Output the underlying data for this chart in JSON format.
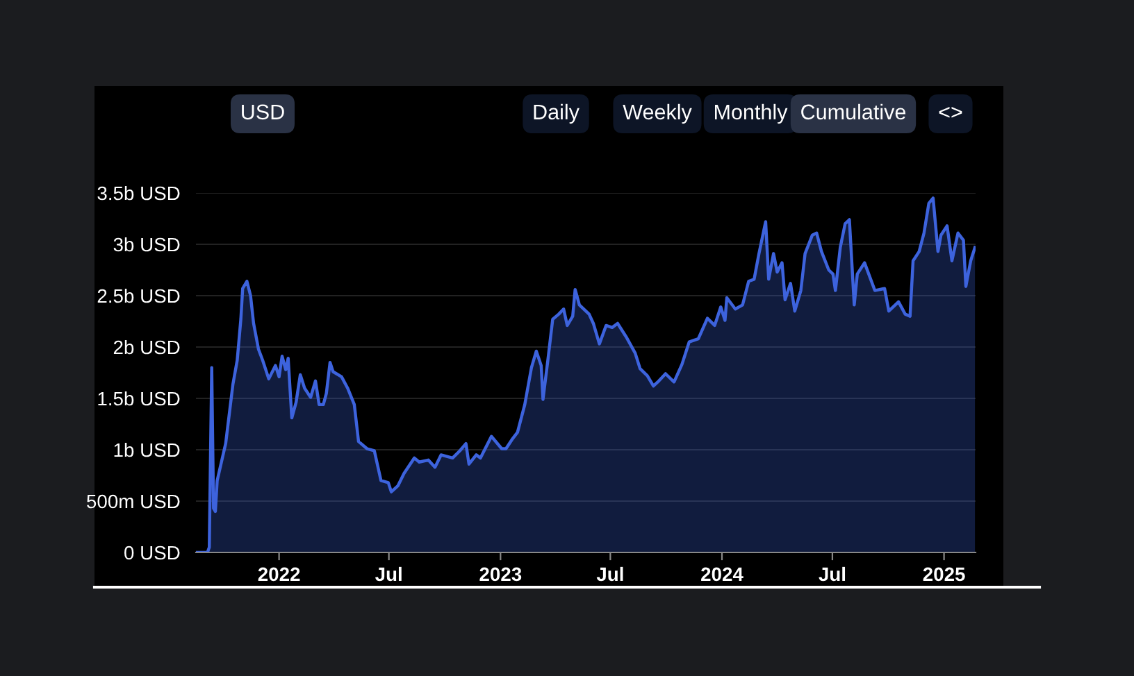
{
  "chart_data": {
    "type": "area",
    "x": [
      "2021-08-17",
      "2021-09-05",
      "2021-09-08",
      "2021-09-12",
      "2021-09-15",
      "2021-09-18",
      "2021-09-21",
      "2021-09-28",
      "2021-10-05",
      "2021-10-17",
      "2021-10-24",
      "2021-10-30",
      "2021-11-02",
      "2021-11-09",
      "2021-11-15",
      "2021-11-20",
      "2021-11-28",
      "2021-12-05",
      "2021-12-15",
      "2021-12-26",
      "2022-01-01",
      "2022-01-06",
      "2022-01-12",
      "2022-01-16",
      "2022-01-22",
      "2022-01-29",
      "2022-02-05",
      "2022-02-12",
      "2022-02-22",
      "2022-03-02",
      "2022-03-08",
      "2022-03-15",
      "2022-03-20",
      "2022-03-26",
      "2022-03-31",
      "2022-04-14",
      "2022-04-24",
      "2022-05-05",
      "2022-05-12",
      "2022-05-26",
      "2022-06-07",
      "2022-06-18",
      "2022-06-30",
      "2022-07-05",
      "2022-07-16",
      "2022-07-26",
      "2022-08-12",
      "2022-08-20",
      "2022-09-04",
      "2022-09-15",
      "2022-09-25",
      "2022-10-14",
      "2022-10-26",
      "2022-11-05",
      "2022-11-10",
      "2022-11-22",
      "2022-11-29",
      "2022-12-17",
      "2023-01-03",
      "2023-01-10",
      "2023-01-20",
      "2023-01-29",
      "2023-02-10",
      "2023-02-21",
      "2023-03-01",
      "2023-03-09",
      "2023-03-12",
      "2023-03-20",
      "2023-03-28",
      "2023-04-07",
      "2023-04-15",
      "2023-04-21",
      "2023-04-30",
      "2023-05-04",
      "2023-05-11",
      "2023-05-27",
      "2023-06-03",
      "2023-06-13",
      "2023-06-24",
      "2023-07-04",
      "2023-07-13",
      "2023-07-27",
      "2023-08-11",
      "2023-08-19",
      "2023-08-31",
      "2023-09-10",
      "2023-09-19",
      "2023-09-30",
      "2023-10-14",
      "2023-10-27",
      "2023-11-08",
      "2023-11-23",
      "2023-12-08",
      "2023-12-20",
      "2023-12-30",
      "2024-01-06",
      "2024-01-09",
      "2024-01-23",
      "2024-02-04",
      "2024-02-14",
      "2024-02-23",
      "2024-03-02",
      "2024-03-13",
      "2024-03-18",
      "2024-03-26",
      "2024-04-01",
      "2024-04-09",
      "2024-04-14",
      "2024-04-23",
      "2024-04-30",
      "2024-05-10",
      "2024-05-17",
      "2024-05-29",
      "2024-06-05",
      "2024-06-13",
      "2024-06-25",
      "2024-07-02",
      "2024-07-06",
      "2024-07-14",
      "2024-07-22",
      "2024-07-29",
      "2024-08-06",
      "2024-08-11",
      "2024-08-23",
      "2024-09-09",
      "2024-09-25",
      "2024-10-02",
      "2024-10-18",
      "2024-10-29",
      "2024-11-06",
      "2024-11-11",
      "2024-11-21",
      "2024-11-29",
      "2024-12-07",
      "2024-12-14",
      "2024-12-22",
      "2024-12-27",
      "2025-01-06",
      "2025-01-14",
      "2025-01-24",
      "2025-02-02",
      "2025-02-06",
      "2025-02-14",
      "2025-02-21"
    ],
    "series": [
      {
        "color": "#3d63dd",
        "values": [
          0,
          0,
          50000000.0,
          1800000000.0,
          430000000.0,
          400000000.0,
          700000000.0,
          880000000.0,
          1060000000.0,
          1640000000.0,
          1870000000.0,
          2270000000.0,
          2570000000.0,
          2640000000.0,
          2500000000.0,
          2230000000.0,
          1980000000.0,
          1870000000.0,
          1690000000.0,
          1820000000.0,
          1710000000.0,
          1910000000.0,
          1780000000.0,
          1890000000.0,
          1310000000.0,
          1460000000.0,
          1730000000.0,
          1600000000.0,
          1510000000.0,
          1670000000.0,
          1440000000.0,
          1440000000.0,
          1550000000.0,
          1850000000.0,
          1760000000.0,
          1710000000.0,
          1600000000.0,
          1440000000.0,
          1080000000.0,
          1010000000.0,
          990000000.0,
          700000000.0,
          680000000.0,
          590000000.0,
          650000000.0,
          770000000.0,
          920000000.0,
          880000000.0,
          900000000.0,
          830000000.0,
          950000000.0,
          920000000.0,
          990000000.0,
          1060000000.0,
          860000000.0,
          950000000.0,
          920000000.0,
          1130000000.0,
          1010000000.0,
          1010000000.0,
          1100000000.0,
          1170000000.0,
          1440000000.0,
          1800000000.0,
          1960000000.0,
          1820000000.0,
          1490000000.0,
          1870000000.0,
          2270000000.0,
          2320000000.0,
          2370000000.0,
          2210000000.0,
          2300000000.0,
          2560000000.0,
          2410000000.0,
          2320000000.0,
          2230000000.0,
          2030000000.0,
          2210000000.0,
          2190000000.0,
          2230000000.0,
          2100000000.0,
          1940000000.0,
          1790000000.0,
          1720000000.0,
          1620000000.0,
          1670000000.0,
          1740000000.0,
          1660000000.0,
          1830000000.0,
          2050000000.0,
          2080000000.0,
          2280000000.0,
          2210000000.0,
          2390000000.0,
          2260000000.0,
          2480000000.0,
          2370000000.0,
          2410000000.0,
          2640000000.0,
          2660000000.0,
          2910000000.0,
          3220000000.0,
          2660000000.0,
          2910000000.0,
          2730000000.0,
          2820000000.0,
          2460000000.0,
          2620000000.0,
          2350000000.0,
          2550000000.0,
          2910000000.0,
          3090000000.0,
          3110000000.0,
          2930000000.0,
          2750000000.0,
          2710000000.0,
          2550000000.0,
          2970000000.0,
          3200000000.0,
          3240000000.0,
          2410000000.0,
          2710000000.0,
          2820000000.0,
          2550000000.0,
          2570000000.0,
          2350000000.0,
          2440000000.0,
          2320000000.0,
          2300000000.0,
          2840000000.0,
          2930000000.0,
          3110000000.0,
          3400000000.0,
          3450000000.0,
          2930000000.0,
          3090000000.0,
          3180000000.0,
          2840000000.0,
          3110000000.0,
          3040000000.0,
          2590000000.0,
          2840000000.0,
          2970000000.0
        ]
      }
    ],
    "xlim": [
      "2021-08-17",
      "2025-02-22"
    ],
    "xticks": [
      {
        "value": "2022-01-01",
        "label": "2022"
      },
      {
        "value": "2022-07-01",
        "label": "Jul"
      },
      {
        "value": "2023-01-01",
        "label": "2023"
      },
      {
        "value": "2023-07-01",
        "label": "Jul"
      },
      {
        "value": "2024-01-01",
        "label": "2024"
      },
      {
        "value": "2024-07-01",
        "label": "Jul"
      },
      {
        "value": "2025-01-01",
        "label": "2025"
      }
    ],
    "ylim": [
      0,
      3500000000.0
    ],
    "yticks": [
      {
        "value": 0,
        "label": "0 USD"
      },
      {
        "value": 500000000.0,
        "label": "500m USD"
      },
      {
        "value": 1000000000.0,
        "label": "1b USD"
      },
      {
        "value": 1500000000.0,
        "label": "1.5b USD"
      },
      {
        "value": 2000000000.0,
        "label": "2b USD"
      },
      {
        "value": 2500000000.0,
        "label": "2.5b USD"
      },
      {
        "value": 3000000000.0,
        "label": "3b USD"
      },
      {
        "value": 3500000000.0,
        "label": "3.5b USD"
      }
    ],
    "grid": "y",
    "annotations": [
      "USD",
      "Daily",
      "Weekly",
      "Monthly",
      "Cumulative",
      "<>"
    ]
  }
}
